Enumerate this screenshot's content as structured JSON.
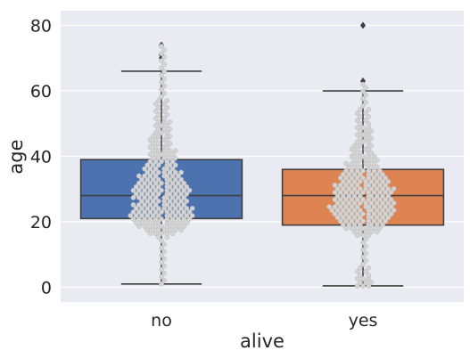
{
  "chart_data": {
    "type": "box+swarm",
    "xlabel": "alive",
    "ylabel": "age",
    "categories": [
      "no",
      "yes"
    ],
    "ylim": [
      -4.5,
      84.5
    ],
    "yticks": [
      0,
      20,
      40,
      60,
      80
    ],
    "grid": true,
    "colors": {
      "background": "#EAEAF2",
      "grid": "#FFFFFF",
      "edge": "#3F3F3F",
      "swarm": "#D3D3D3",
      "swarm_edge": "#BDBDBD",
      "no": "#4C72B0",
      "yes": "#DD8452"
    },
    "boxes": [
      {
        "category": "no",
        "whisker_low": 1,
        "q1": 21,
        "median": 28,
        "q3": 39,
        "whisker_high": 66,
        "outliers": [
          70,
          71,
          71,
          74
        ]
      },
      {
        "category": "yes",
        "whisker_low": 0.42,
        "q1": 19,
        "median": 28,
        "q3": 36,
        "whisker_high": 60,
        "outliers": [
          63,
          80
        ]
      }
    ],
    "swarm_profile": {
      "no": [
        [
          1,
          0.02
        ],
        [
          5,
          0.02
        ],
        [
          10,
          0.03
        ],
        [
          15,
          0.11
        ],
        [
          18,
          0.7
        ],
        [
          20,
          0.85
        ],
        [
          22,
          1.0
        ],
        [
          24,
          0.9
        ],
        [
          26,
          0.75
        ],
        [
          28,
          0.82
        ],
        [
          30,
          0.9
        ],
        [
          32,
          0.72
        ],
        [
          35,
          0.6
        ],
        [
          38,
          0.45
        ],
        [
          42,
          0.38
        ],
        [
          46,
          0.3
        ],
        [
          50,
          0.22
        ],
        [
          55,
          0.15
        ],
        [
          60,
          0.1
        ],
        [
          65,
          0.06
        ]
      ],
      "yes": [
        [
          0.4,
          0.25
        ],
        [
          4,
          0.2
        ],
        [
          8,
          0.08
        ],
        [
          12,
          0.04
        ],
        [
          15,
          0.09
        ],
        [
          18,
          0.6
        ],
        [
          20,
          0.75
        ],
        [
          22,
          0.88
        ],
        [
          24,
          1.0
        ],
        [
          26,
          0.9
        ],
        [
          28,
          0.85
        ],
        [
          30,
          0.92
        ],
        [
          32,
          0.78
        ],
        [
          35,
          0.65
        ],
        [
          38,
          0.45
        ],
        [
          42,
          0.35
        ],
        [
          46,
          0.25
        ],
        [
          50,
          0.2
        ],
        [
          55,
          0.12
        ],
        [
          60,
          0.05
        ]
      ]
    }
  }
}
